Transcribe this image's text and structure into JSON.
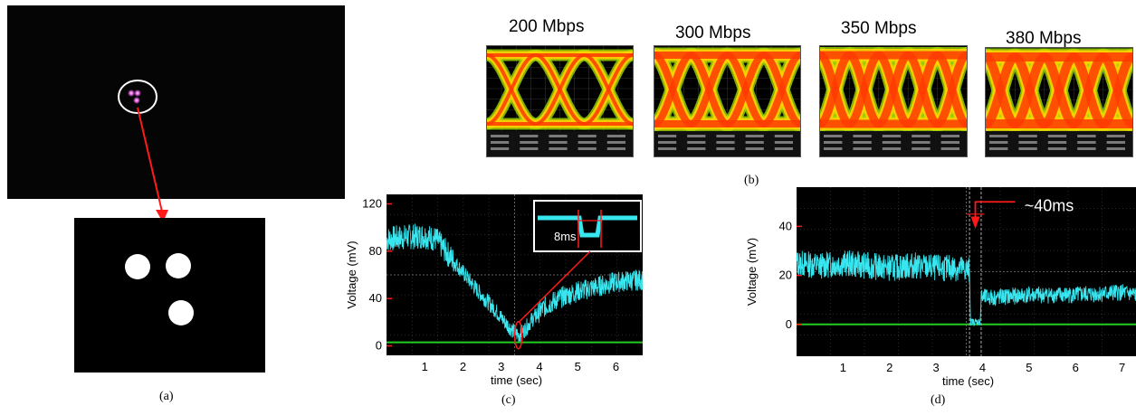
{
  "figure": {
    "captions": {
      "a": "(a)",
      "b": "(b)",
      "c": "(c)",
      "d": "(d)"
    }
  },
  "panel_b": {
    "rates": [
      "200 Mbps",
      "300 Mbps",
      "350 Mbps",
      "380 Mbps"
    ]
  },
  "colors": {
    "trace": "#38e6ef",
    "ground": "#22cc22",
    "annotation": "#ff1a1a",
    "eye_hot": "#ff3a00",
    "eye_warm": "#ffd200",
    "eye_cool": "#9fd800"
  },
  "chart_data": [
    {
      "id": "c",
      "type": "line",
      "title": "",
      "xlabel": "time (sec)",
      "ylabel": "Voltage (mV)",
      "xlim": [
        0,
        6.7
      ],
      "ylim": [
        -8,
        128
      ],
      "x_ticks": [
        1,
        2,
        3,
        4,
        5,
        6
      ],
      "y_ticks": [
        0,
        40,
        80,
        120
      ],
      "series": [
        {
          "x": [
            0,
            0.5,
            1,
            1.3,
            1.6,
            2.0,
            2.4,
            2.8,
            3.1,
            3.3,
            3.45,
            3.6,
            3.8,
            4.1,
            4.5,
            5.0,
            5.5,
            6.0,
            6.7
          ],
          "y": [
            90,
            92,
            93,
            90,
            78,
            62,
            46,
            32,
            20,
            13,
            9,
            13,
            22,
            32,
            40,
            46,
            50,
            54,
            56
          ]
        }
      ],
      "ground_level": 3,
      "inset_label": "8ms"
    },
    {
      "id": "d",
      "type": "line",
      "title": "",
      "xlabel": "time (sec)",
      "ylabel": "Voltage (mV)",
      "xlim": [
        0,
        7.3
      ],
      "ylim": [
        -13,
        56
      ],
      "x_ticks": [
        1,
        2,
        3,
        4,
        5,
        6,
        7
      ],
      "y_ticks": [
        0,
        20,
        40
      ],
      "series": [
        {
          "x": [
            0,
            0.5,
            1,
            1.5,
            2,
            2.5,
            3,
            3.5,
            3.72,
            3.74,
            3.95,
            3.97,
            4.3,
            5,
            6,
            7,
            7.3
          ],
          "y": [
            25,
            24,
            25,
            24,
            23,
            24,
            23,
            23,
            22,
            1,
            1,
            11,
            11,
            12,
            12,
            13,
            12
          ]
        }
      ],
      "ground_level": 0,
      "annotation": "~40ms"
    }
  ]
}
